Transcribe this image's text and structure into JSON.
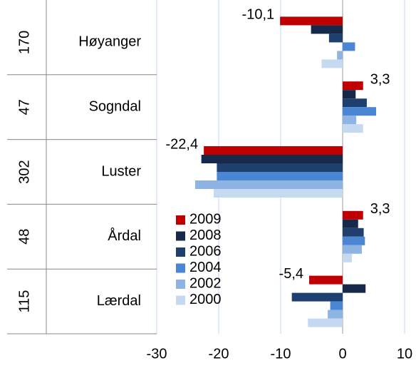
{
  "chart_data": {
    "type": "bar",
    "orientation": "horizontal",
    "categories": [
      "Høyanger",
      "Sogndal",
      "Luster",
      "Årdal",
      "Lærdal"
    ],
    "category_codes": [
      170,
      47,
      302,
      48,
      115
    ],
    "series": [
      {
        "name": "2009",
        "color": "#c00000",
        "values": [
          -10.1,
          3.3,
          -22.4,
          3.3,
          -5.4
        ],
        "value_labels": [
          "-10,1",
          "3,3",
          "-22,4",
          "3,3",
          "-5,4"
        ]
      },
      {
        "name": "2008",
        "color": "#17294a",
        "values": [
          -5.1,
          2.1,
          -22.8,
          2.5,
          3.7
        ]
      },
      {
        "name": "2006",
        "color": "#1f3f6e",
        "values": [
          -2.2,
          3.9,
          -20.3,
          3.4,
          -8.2
        ]
      },
      {
        "name": "2004",
        "color": "#4a86d4",
        "values": [
          2.0,
          5.4,
          -20.3,
          3.6,
          -2.0
        ]
      },
      {
        "name": "2002",
        "color": "#8db4e2",
        "values": [
          -0.9,
          2.2,
          -23.8,
          3.1,
          -2.4
        ]
      },
      {
        "name": "2000",
        "color": "#c5d9f1",
        "values": [
          -3.4,
          3.3,
          -20.8,
          1.5,
          -5.6
        ]
      }
    ],
    "xlim": [
      -30,
      10
    ],
    "xticks": [
      -30,
      -20,
      -10,
      0,
      10
    ],
    "grid": true
  }
}
